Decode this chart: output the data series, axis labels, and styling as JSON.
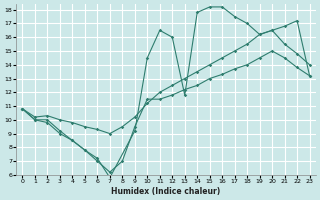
{
  "xlabel": "Humidex (Indice chaleur)",
  "bg_color": "#cce8e8",
  "grid_color": "#ffffff",
  "line_color": "#2e7d6e",
  "xlim": [
    -0.5,
    23.5
  ],
  "ylim": [
    6,
    18.4
  ],
  "xticks": [
    0,
    1,
    2,
    3,
    4,
    5,
    6,
    7,
    8,
    9,
    10,
    11,
    12,
    13,
    14,
    15,
    16,
    17,
    18,
    19,
    20,
    21,
    22,
    23
  ],
  "yticks": [
    6,
    7,
    8,
    9,
    10,
    11,
    12,
    13,
    14,
    15,
    16,
    17,
    18
  ],
  "curve1_x": [
    0,
    1,
    2,
    3,
    4,
    5,
    6,
    7,
    8,
    9,
    10,
    11,
    12,
    13,
    14,
    15,
    16,
    17,
    18,
    19,
    20,
    21,
    22,
    23
  ],
  "curve1_y": [
    10.8,
    10.0,
    10.0,
    9.2,
    8.5,
    7.8,
    7.0,
    6.2,
    7.0,
    9.5,
    11.5,
    11.5,
    11.8,
    12.2,
    12.5,
    13.0,
    13.3,
    13.7,
    14.0,
    14.5,
    15.0,
    14.5,
    13.8,
    13.2
  ],
  "curve2_x": [
    0,
    1,
    2,
    3,
    4,
    5,
    6,
    7,
    8,
    9,
    10,
    11,
    12,
    13,
    14,
    15,
    16,
    17,
    18,
    19,
    20,
    21,
    22,
    23
  ],
  "curve2_y": [
    10.8,
    10.2,
    10.3,
    10.0,
    9.8,
    9.5,
    9.3,
    9.0,
    9.5,
    10.2,
    11.2,
    12.0,
    12.5,
    13.0,
    13.5,
    14.0,
    14.5,
    15.0,
    15.5,
    16.2,
    16.5,
    16.8,
    17.2,
    13.2
  ],
  "curve3_x": [
    0,
    1,
    2,
    3,
    4,
    5,
    6,
    7,
    9,
    10,
    11,
    12,
    13,
    14,
    15,
    16,
    17,
    18,
    19,
    20,
    21,
    22,
    23
  ],
  "curve3_y": [
    10.8,
    10.0,
    9.8,
    9.0,
    8.5,
    7.8,
    7.2,
    5.8,
    9.2,
    14.5,
    16.5,
    16.0,
    11.8,
    17.8,
    18.2,
    18.2,
    17.5,
    17.0,
    16.2,
    16.5,
    15.5,
    14.8,
    14.0
  ]
}
